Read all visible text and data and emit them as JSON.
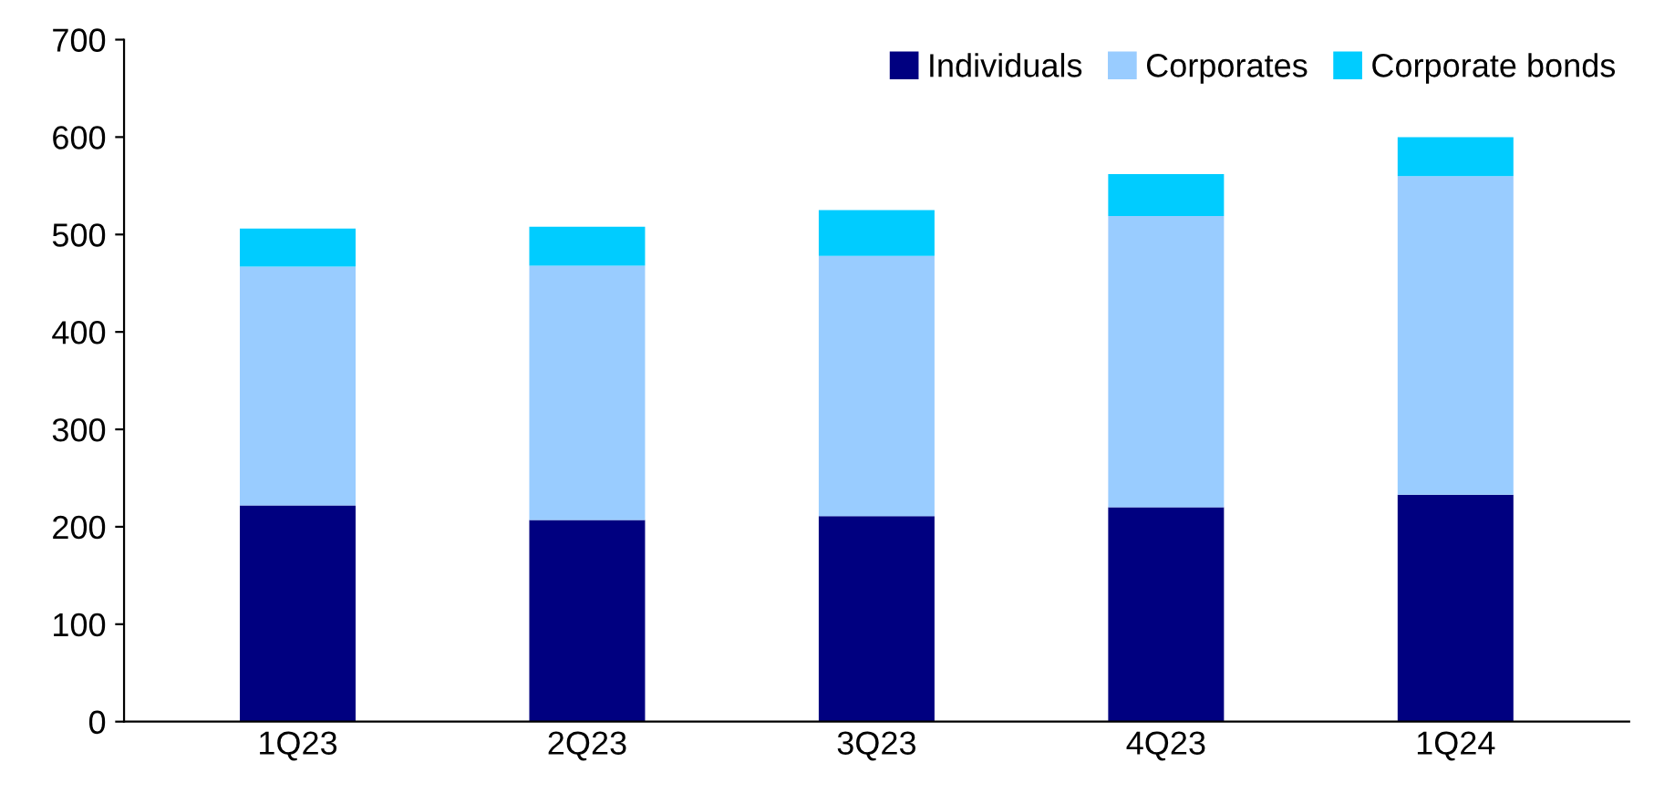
{
  "chart_data": {
    "type": "bar",
    "stacked": true,
    "categories": [
      "1Q23",
      "2Q23",
      "3Q23",
      "4Q23",
      "1Q24"
    ],
    "series": [
      {
        "name": "Individuals",
        "color": "#000080",
        "values": [
          222,
          207,
          211,
          220,
          233
        ]
      },
      {
        "name": "Corporates",
        "color": "#99ccff",
        "values": [
          245,
          261,
          267,
          299,
          327
        ]
      },
      {
        "name": "Corporate bonds",
        "color": "#00ccff",
        "values": [
          39,
          40,
          47,
          43,
          40
        ]
      }
    ],
    "ylim": [
      0,
      700
    ],
    "yticks": [
      0,
      100,
      200,
      300,
      400,
      500,
      600,
      700
    ],
    "grid": false,
    "legend": "top right"
  }
}
